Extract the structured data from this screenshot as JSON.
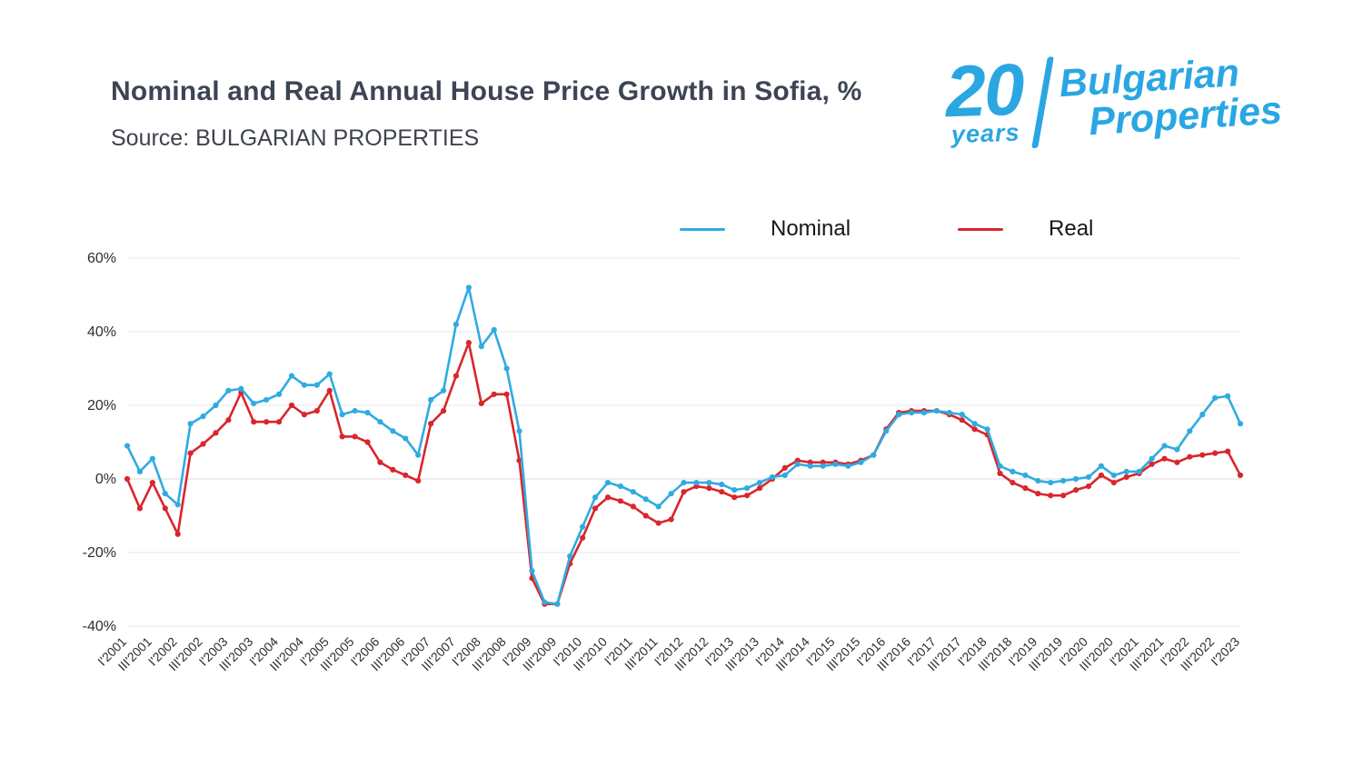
{
  "header": {
    "title": "Nominal and Real Annual House Price Growth in Sofia, %",
    "subtitle": "Source: BULGARIAN PROPERTIES"
  },
  "logo": {
    "number": "20",
    "years_word": "years",
    "brand_line1": "Bulgarian",
    "brand_line2": "Properties",
    "color": "#2aa7e2"
  },
  "legend": [
    {
      "label": "Nominal",
      "color": "#2fabe1"
    },
    {
      "label": "Real",
      "color": "#d9262c"
    }
  ],
  "chart_data": {
    "type": "line",
    "title": "Nominal and Real Annual House Price Growth in Sofia, %",
    "x_frequency": "quarterly",
    "x_tick_step": 2,
    "x_tick_labels": [
      "I'2001",
      "III'2001",
      "I'2002",
      "III'2002",
      "I'2003",
      "III'2003",
      "I'2004",
      "III'2004",
      "I'2005",
      "III'2005",
      "I'2006",
      "III'2006",
      "I'2007",
      "III'2007",
      "I'2008",
      "III'2008",
      "I'2009",
      "III'2009",
      "I'2010",
      "III'2010",
      "I'2011",
      "III'2011",
      "I'2012",
      "III'2012",
      "I'2013",
      "III'2013",
      "I'2014",
      "III'2014",
      "I'2015",
      "III'2015",
      "I'2016",
      "III'2016",
      "I'2017",
      "III'2017",
      "I'2018",
      "III'2018",
      "I'2019",
      "III'2019",
      "I'2020",
      "III'2020",
      "I'2021",
      "III'2021",
      "I'2022",
      "III'2022",
      "I'2023"
    ],
    "y_ticks": [
      60,
      40,
      20,
      0,
      -20,
      -40
    ],
    "y_tick_format": "{v}%",
    "ylim": [
      -40,
      60
    ],
    "grid": "horizontal",
    "legend_position": "top-center",
    "series": [
      {
        "name": "Nominal",
        "color": "#2fabe1",
        "values": [
          9,
          2,
          5.5,
          -4,
          -7,
          15,
          17,
          20,
          24,
          24.5,
          20.5,
          21.5,
          23,
          28,
          25.5,
          25.5,
          28.5,
          17.5,
          18.5,
          18,
          15.5,
          13,
          11,
          6.5,
          21.5,
          24,
          42,
          52,
          36,
          40.5,
          30,
          13,
          -25,
          -33.5,
          -34,
          -21,
          -13,
          -5,
          -1,
          -2,
          -3.5,
          -5.5,
          -7.5,
          -4,
          -1,
          -1,
          -1,
          -1.5,
          -3,
          -2.5,
          -1,
          0.5,
          1,
          4,
          3.5,
          3.5,
          4,
          3.5,
          4.5,
          6.5,
          13,
          17.5,
          18,
          18,
          18.5,
          18,
          17.5,
          15,
          13.5,
          3.5,
          2,
          1,
          -0.5,
          -1,
          -0.5,
          0,
          0.5,
          3.5,
          1,
          2,
          2,
          5.5,
          9,
          8,
          13,
          17.5,
          22,
          22.5,
          15
        ]
      },
      {
        "name": "Real",
        "color": "#d9262c",
        "values": [
          0,
          -8,
          -1,
          -8,
          -15,
          7,
          9.5,
          12.5,
          16,
          23.5,
          15.5,
          15.5,
          15.5,
          20,
          17.5,
          18.5,
          24,
          11.5,
          11.5,
          10,
          4.5,
          2.5,
          1,
          -0.5,
          15,
          18.5,
          28,
          37,
          20.5,
          23,
          23,
          5,
          -27,
          -34,
          -34,
          -23,
          -16,
          -8,
          -5,
          -6,
          -7.5,
          -10,
          -12,
          -11,
          -3.5,
          -2,
          -2.5,
          -3.5,
          -5,
          -4.5,
          -2.5,
          0,
          3,
          5,
          4.5,
          4.5,
          4.5,
          4,
          5,
          6.5,
          13.5,
          18,
          18.5,
          18.5,
          18.5,
          17.5,
          16,
          13.5,
          12,
          1.5,
          -1,
          -2.5,
          -4,
          -4.5,
          -4.5,
          -3,
          -2,
          1,
          -1,
          0.5,
          1.5,
          4,
          5.5,
          4.5,
          6,
          6.5,
          7,
          7.5,
          1
        ]
      }
    ]
  }
}
